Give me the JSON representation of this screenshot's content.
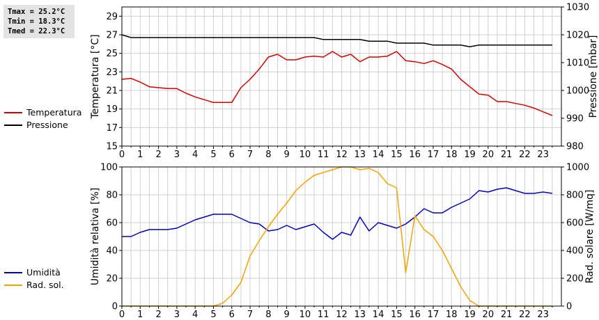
{
  "stats": {
    "tmax": "Tmax = 25.2°C",
    "tmin": "Tmin = 18.3°C",
    "tmed": "Tmed = 22.3°C"
  },
  "colors": {
    "temperature": "#d40000",
    "pressure": "#000000",
    "humidity": "#0000b8",
    "solar": "#f4a300",
    "grid": "#d0d0d0"
  },
  "chart_data": [
    {
      "type": "line",
      "title": "",
      "xlabel": "",
      "ylabel": "Temperatura [°C]",
      "ylabel_right": "Pressione [mbar]",
      "xlim": [
        0,
        24
      ],
      "ylim": [
        15,
        30
      ],
      "ylim_right": [
        980,
        1030
      ],
      "x_ticks": [
        "0",
        "1",
        "2",
        "3",
        "4",
        "5",
        "6",
        "7",
        "8",
        "9",
        "10",
        "11",
        "12",
        "13",
        "14",
        "15",
        "16",
        "17",
        "18",
        "19",
        "20",
        "21",
        "22",
        "23"
      ],
      "y_ticks": [
        "15",
        "17",
        "19",
        "21",
        "23",
        "25",
        "27",
        "29"
      ],
      "y_ticks_right": [
        "980",
        "990",
        "1000",
        "1010",
        "1020",
        "1030"
      ],
      "grid": true,
      "legend_position": "left",
      "series": [
        {
          "name": "Temperatura",
          "axis": "left",
          "color": "#d40000",
          "x": [
            0,
            0.5,
            1,
            1.5,
            2,
            2.5,
            3,
            3.5,
            4,
            4.5,
            5,
            5.5,
            6,
            6.5,
            7,
            7.5,
            8,
            8.5,
            9,
            9.5,
            10,
            10.5,
            11,
            11.5,
            12,
            12.5,
            13,
            13.5,
            14,
            14.5,
            15,
            15.5,
            16,
            16.5,
            17,
            17.5,
            18,
            18.5,
            19,
            19.5,
            20,
            20.5,
            21,
            21.5,
            22,
            22.5,
            23,
            23.5
          ],
          "y": [
            22.2,
            22.3,
            21.9,
            21.4,
            21.3,
            21.2,
            21.2,
            20.7,
            20.3,
            20.0,
            19.7,
            19.7,
            19.7,
            21.3,
            22.2,
            23.3,
            24.6,
            24.9,
            24.3,
            24.3,
            24.6,
            24.7,
            24.6,
            25.2,
            24.6,
            24.9,
            24.1,
            24.6,
            24.6,
            24.7,
            25.2,
            24.2,
            24.1,
            23.9,
            24.2,
            23.8,
            23.3,
            22.2,
            21.4,
            20.6,
            20.5,
            19.8,
            19.8,
            19.6,
            19.4,
            19.1,
            18.7,
            18.3
          ]
        },
        {
          "name": "Pressione",
          "axis": "right",
          "color": "#000000",
          "x": [
            0,
            0.5,
            1,
            1.5,
            2,
            2.5,
            3,
            3.5,
            4,
            4.5,
            5,
            5.5,
            6,
            6.5,
            7,
            7.5,
            8,
            8.5,
            9,
            9.5,
            10,
            10.5,
            11,
            11.5,
            12,
            12.5,
            13,
            13.5,
            14,
            14.5,
            15,
            15.5,
            16,
            16.5,
            17,
            17.5,
            18,
            18.5,
            19,
            19.5,
            20,
            20.5,
            21,
            21.5,
            22,
            22.5,
            23,
            23.5
          ],
          "y": [
            1020,
            1019,
            1019,
            1019,
            1019,
            1019,
            1019,
            1019,
            1019,
            1019,
            1019,
            1019,
            1019,
            1019,
            1019,
            1019,
            1019,
            1019,
            1019,
            1019,
            1019,
            1019,
            1018.3,
            1018.3,
            1018.3,
            1018.3,
            1018.3,
            1017.7,
            1017.7,
            1017.7,
            1017,
            1017,
            1017,
            1017,
            1016.3,
            1016.3,
            1016.3,
            1016.3,
            1015.7,
            1016.3,
            1016.3,
            1016.3,
            1016.3,
            1016.3,
            1016.3,
            1016.3,
            1016.3,
            1016.3
          ]
        }
      ]
    },
    {
      "type": "line",
      "title": "",
      "xlabel": "",
      "ylabel": "Umidità relativa [%]",
      "ylabel_right": "Rad. solare [W/mq]",
      "xlim": [
        0,
        24
      ],
      "ylim": [
        0,
        100
      ],
      "ylim_right": [
        0,
        1000
      ],
      "x_ticks": [
        "0",
        "1",
        "2",
        "3",
        "4",
        "5",
        "6",
        "7",
        "8",
        "9",
        "10",
        "11",
        "12",
        "13",
        "14",
        "15",
        "16",
        "17",
        "18",
        "19",
        "20",
        "21",
        "22",
        "23"
      ],
      "y_ticks": [
        "0",
        "20",
        "40",
        "60",
        "80",
        "100"
      ],
      "y_ticks_right": [
        "0",
        "200",
        "400",
        "600",
        "800",
        "1000"
      ],
      "grid": true,
      "legend_position": "left",
      "series": [
        {
          "name": "Umidità",
          "axis": "left",
          "color": "#0000b8",
          "x": [
            0,
            0.5,
            1,
            1.5,
            2,
            2.5,
            3,
            3.5,
            4,
            4.5,
            5,
            5.5,
            6,
            6.5,
            7,
            7.5,
            8,
            8.5,
            9,
            9.5,
            10,
            10.5,
            11,
            11.5,
            12,
            12.5,
            13,
            13.5,
            14,
            14.5,
            15,
            15.5,
            16,
            16.5,
            17,
            17.5,
            18,
            18.5,
            19,
            19.5,
            20,
            20.5,
            21,
            21.5,
            22,
            22.5,
            23,
            23.5
          ],
          "y": [
            50,
            50,
            53,
            55,
            55,
            55,
            56,
            59,
            62,
            64,
            66,
            66,
            66,
            63,
            60,
            59,
            54,
            55,
            58,
            55,
            57,
            59,
            53,
            48,
            53,
            51,
            64,
            54,
            60,
            58,
            56,
            59,
            64,
            70,
            67,
            67,
            71,
            74,
            77,
            83,
            82,
            84,
            85,
            83,
            81,
            81,
            82,
            81
          ]
        },
        {
          "name": "Rad. sol.",
          "axis": "right",
          "color": "#f4a300",
          "x": [
            0,
            0.5,
            1,
            1.5,
            2,
            2.5,
            3,
            3.5,
            4,
            4.5,
            5,
            5.5,
            6,
            6.5,
            7,
            7.5,
            8,
            8.5,
            9,
            9.5,
            10,
            10.5,
            11,
            11.5,
            12,
            12.5,
            13,
            13.5,
            14,
            14.5,
            15,
            15.5,
            16,
            16.5,
            17,
            17.5,
            18,
            18.5,
            19,
            19.5,
            20,
            20.5,
            21,
            21.5,
            22,
            22.5,
            23,
            23.5
          ],
          "y": [
            0,
            0,
            0,
            0,
            0,
            0,
            0,
            0,
            0,
            0,
            0,
            20,
            80,
            170,
            360,
            470,
            570,
            660,
            740,
            830,
            890,
            940,
            960,
            980,
            1000,
            1000,
            980,
            990,
            960,
            880,
            850,
            240,
            650,
            550,
            500,
            400,
            270,
            140,
            40,
            0,
            0,
            0,
            0,
            0,
            0,
            0,
            0,
            0
          ]
        }
      ]
    }
  ]
}
